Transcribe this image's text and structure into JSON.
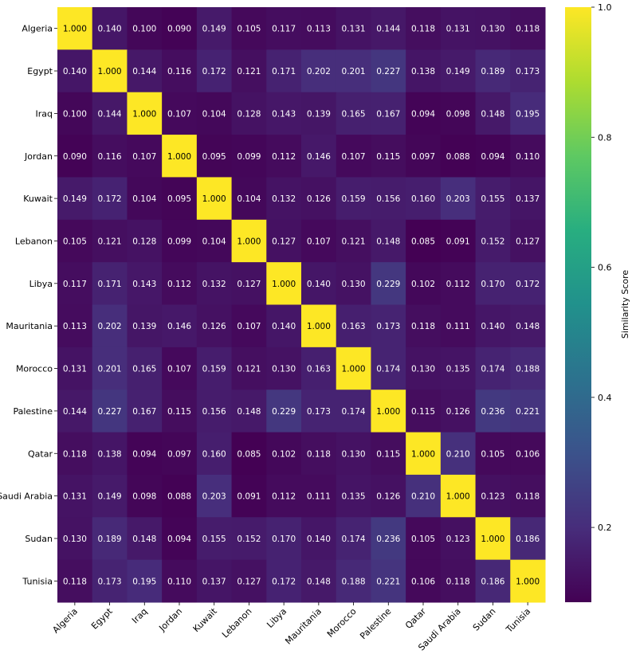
{
  "chart_data": {
    "type": "heatmap",
    "title": "",
    "xlabel": "",
    "ylabel": "",
    "categories": [
      "Algeria",
      "Egypt",
      "Iraq",
      "Jordan",
      "Kuwait",
      "Lebanon",
      "Libya",
      "Mauritania",
      "Morocco",
      "Palestine",
      "Qatar",
      "Saudi Arabia",
      "Sudan",
      "Tunisia"
    ],
    "matrix": [
      [
        1.0,
        0.14,
        0.1,
        0.09,
        0.149,
        0.105,
        0.117,
        0.113,
        0.131,
        0.144,
        0.118,
        0.131,
        0.13,
        0.118
      ],
      [
        0.14,
        1.0,
        0.144,
        0.116,
        0.172,
        0.121,
        0.171,
        0.202,
        0.201,
        0.227,
        0.138,
        0.149,
        0.189,
        0.173
      ],
      [
        0.1,
        0.144,
        1.0,
        0.107,
        0.104,
        0.128,
        0.143,
        0.139,
        0.165,
        0.167,
        0.094,
        0.098,
        0.148,
        0.195
      ],
      [
        0.09,
        0.116,
        0.107,
        1.0,
        0.095,
        0.099,
        0.112,
        0.146,
        0.107,
        0.115,
        0.097,
        0.088,
        0.094,
        0.11
      ],
      [
        0.149,
        0.172,
        0.104,
        0.095,
        1.0,
        0.104,
        0.132,
        0.126,
        0.159,
        0.156,
        0.16,
        0.203,
        0.155,
        0.137
      ],
      [
        0.105,
        0.121,
        0.128,
        0.099,
        0.104,
        1.0,
        0.127,
        0.107,
        0.121,
        0.148,
        0.085,
        0.091,
        0.152,
        0.127
      ],
      [
        0.117,
        0.171,
        0.143,
        0.112,
        0.132,
        0.127,
        1.0,
        0.14,
        0.13,
        0.229,
        0.102,
        0.112,
        0.17,
        0.172
      ],
      [
        0.113,
        0.202,
        0.139,
        0.146,
        0.126,
        0.107,
        0.14,
        1.0,
        0.163,
        0.173,
        0.118,
        0.111,
        0.14,
        0.148
      ],
      [
        0.131,
        0.201,
        0.165,
        0.107,
        0.159,
        0.121,
        0.13,
        0.163,
        1.0,
        0.174,
        0.13,
        0.135,
        0.174,
        0.188
      ],
      [
        0.144,
        0.227,
        0.167,
        0.115,
        0.156,
        0.148,
        0.229,
        0.173,
        0.174,
        1.0,
        0.115,
        0.126,
        0.236,
        0.221
      ],
      [
        0.118,
        0.138,
        0.094,
        0.097,
        0.16,
        0.085,
        0.102,
        0.118,
        0.13,
        0.115,
        1.0,
        0.21,
        0.105,
        0.106
      ],
      [
        0.131,
        0.149,
        0.098,
        0.088,
        0.203,
        0.091,
        0.112,
        0.111,
        0.135,
        0.126,
        0.21,
        1.0,
        0.123,
        0.118
      ],
      [
        0.13,
        0.189,
        0.148,
        0.094,
        0.155,
        0.152,
        0.17,
        0.14,
        0.174,
        0.236,
        0.105,
        0.123,
        1.0,
        0.186
      ],
      [
        0.118,
        0.173,
        0.195,
        0.11,
        0.137,
        0.127,
        0.172,
        0.148,
        0.188,
        0.221,
        0.106,
        0.118,
        0.186,
        1.0
      ]
    ],
    "colorbar": {
      "label": "Similarity Score",
      "range": [
        0.085,
        1.0
      ],
      "ticks": [
        0.2,
        0.4,
        0.6,
        0.8,
        1.0
      ],
      "tick_labels": [
        "0.2",
        "0.4",
        "0.6",
        "0.8",
        "1.0"
      ],
      "colormap": "viridis"
    },
    "cell_label_format": "3 decimals"
  }
}
